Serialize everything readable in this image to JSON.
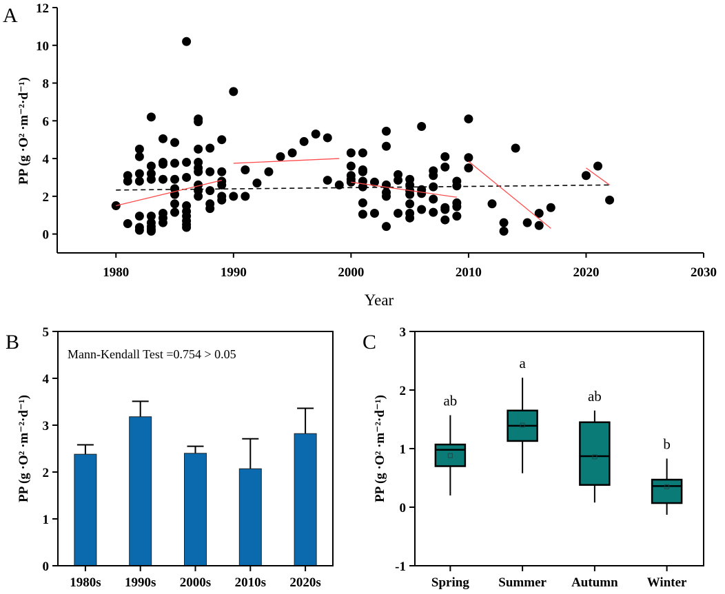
{
  "chart_data": [
    {
      "panel": "A",
      "type": "scatter",
      "xlabel": "Year",
      "ylabel": "PP (g ·O² ·m⁻²·d⁻¹)",
      "xlim": [
        1975,
        2030
      ],
      "ylim": [
        -1,
        12
      ],
      "xticks": [
        1980,
        1990,
        2000,
        2010,
        2020,
        2030
      ],
      "yticks": [
        0,
        2,
        4,
        6,
        8,
        10,
        12
      ],
      "colors": {
        "points": "#000000",
        "overall_trend": "#000000",
        "decade_trend": "#ff4d4d"
      },
      "points": [
        [
          1980,
          1.5
        ],
        [
          1981,
          3.1
        ],
        [
          1981,
          2.8
        ],
        [
          1981,
          0.55
        ],
        [
          1982,
          4.5
        ],
        [
          1982,
          4.1
        ],
        [
          1982,
          3.2
        ],
        [
          1982,
          2.8
        ],
        [
          1982,
          0.95
        ],
        [
          1982,
          0.35
        ],
        [
          1982,
          0.2
        ],
        [
          1983,
          6.2
        ],
        [
          1983,
          3.6
        ],
        [
          1983,
          3.2
        ],
        [
          1983,
          2.9
        ],
        [
          1983,
          0.95
        ],
        [
          1983,
          0.6
        ],
        [
          1983,
          0.4
        ],
        [
          1983,
          0.25
        ],
        [
          1983,
          0.15
        ],
        [
          1984,
          5.05
        ],
        [
          1984,
          3.8
        ],
        [
          1984,
          3.7
        ],
        [
          1984,
          2.9
        ],
        [
          1984,
          1.1
        ],
        [
          1984,
          0.85
        ],
        [
          1984,
          0.6
        ],
        [
          1985,
          4.85
        ],
        [
          1985,
          3.75
        ],
        [
          1985,
          2.9
        ],
        [
          1985,
          2.4
        ],
        [
          1985,
          2.1
        ],
        [
          1985,
          1.6
        ],
        [
          1985,
          1.15
        ],
        [
          1986,
          10.2
        ],
        [
          1986,
          3.8
        ],
        [
          1986,
          3.0
        ],
        [
          1986,
          1.5
        ],
        [
          1986,
          1.2
        ],
        [
          1986,
          0.95
        ],
        [
          1986,
          0.7
        ],
        [
          1986,
          0.5
        ],
        [
          1986,
          0.35
        ],
        [
          1987,
          6.1
        ],
        [
          1987,
          5.95
        ],
        [
          1987,
          4.5
        ],
        [
          1987,
          3.8
        ],
        [
          1987,
          3.5
        ],
        [
          1987,
          3.3
        ],
        [
          1987,
          2.6
        ],
        [
          1987,
          2.3
        ],
        [
          1987,
          2.0
        ],
        [
          1988,
          4.55
        ],
        [
          1988,
          3.3
        ],
        [
          1988,
          2.3
        ],
        [
          1988,
          1.6
        ],
        [
          1988,
          1.35
        ],
        [
          1989,
          5.0
        ],
        [
          1989,
          3.3
        ],
        [
          1989,
          2.8
        ],
        [
          1989,
          2.6
        ],
        [
          1989,
          2.0
        ],
        [
          1989,
          1.8
        ],
        [
          1990,
          7.55
        ],
        [
          1990,
          2.0
        ],
        [
          1991,
          3.4
        ],
        [
          1991,
          2.0
        ],
        [
          1992,
          2.7
        ],
        [
          1993,
          3.3
        ],
        [
          1994,
          4.1
        ],
        [
          1995,
          4.3
        ],
        [
          1996,
          4.9
        ],
        [
          1997,
          5.3
        ],
        [
          1998,
          5.1
        ],
        [
          1998,
          2.85
        ],
        [
          1999,
          2.6
        ],
        [
          2000,
          4.3
        ],
        [
          2000,
          3.6
        ],
        [
          2000,
          3.1
        ],
        [
          2000,
          2.9
        ],
        [
          2000,
          2.75
        ],
        [
          2001,
          4.3
        ],
        [
          2001,
          3.4
        ],
        [
          2001,
          3.3
        ],
        [
          2001,
          2.8
        ],
        [
          2001,
          2.5
        ],
        [
          2001,
          1.65
        ],
        [
          2001,
          1.05
        ],
        [
          2002,
          2.75
        ],
        [
          2002,
          1.1
        ],
        [
          2003,
          5.45
        ],
        [
          2003,
          4.65
        ],
        [
          2003,
          2.6
        ],
        [
          2003,
          2.2
        ],
        [
          2003,
          2.0
        ],
        [
          2003,
          0.4
        ],
        [
          2004,
          3.15
        ],
        [
          2004,
          2.85
        ],
        [
          2004,
          1.1
        ],
        [
          2005,
          2.9
        ],
        [
          2005,
          2.6
        ],
        [
          2005,
          2.3
        ],
        [
          2005,
          2.1
        ],
        [
          2005,
          1.6
        ],
        [
          2005,
          1.1
        ],
        [
          2005,
          0.85
        ],
        [
          2006,
          5.7
        ],
        [
          2006,
          2.35
        ],
        [
          2006,
          2.15
        ],
        [
          2006,
          1.3
        ],
        [
          2007,
          3.35
        ],
        [
          2007,
          3.1
        ],
        [
          2007,
          2.5
        ],
        [
          2007,
          1.85
        ],
        [
          2007,
          1.15
        ],
        [
          2008,
          4.1
        ],
        [
          2008,
          3.55
        ],
        [
          2008,
          1.4
        ],
        [
          2008,
          1.3
        ],
        [
          2008,
          0.75
        ],
        [
          2009,
          2.8
        ],
        [
          2009,
          2.55
        ],
        [
          2009,
          1.65
        ],
        [
          2009,
          1.45
        ],
        [
          2009,
          0.95
        ],
        [
          2010,
          6.1
        ],
        [
          2010,
          4.05
        ],
        [
          2010,
          3.5
        ],
        [
          2012,
          1.6
        ],
        [
          2013,
          0.6
        ],
        [
          2013,
          0.15
        ],
        [
          2014,
          4.55
        ],
        [
          2015,
          0.6
        ],
        [
          2016,
          1.1
        ],
        [
          2016,
          0.45
        ],
        [
          2017,
          1.4
        ],
        [
          2020,
          3.1
        ],
        [
          2021,
          3.6
        ],
        [
          2022,
          1.8
        ]
      ],
      "overall_trend": [
        [
          1980,
          2.33
        ],
        [
          2022,
          2.6
        ]
      ],
      "decade_trends": [
        [
          [
            1980,
            1.5
          ],
          [
            1989,
            2.85
          ]
        ],
        [
          [
            1990,
            3.75
          ],
          [
            1999,
            4.0
          ]
        ],
        [
          [
            2000,
            2.75
          ],
          [
            2009,
            1.95
          ]
        ],
        [
          [
            2010,
            3.85
          ],
          [
            2017,
            0.3
          ]
        ],
        [
          [
            2020,
            3.5
          ],
          [
            2022,
            2.6
          ]
        ]
      ]
    },
    {
      "panel": "B",
      "type": "bar",
      "categories": [
        "1980s",
        "1990s",
        "2000s",
        "2010s",
        "2020s"
      ],
      "values": [
        2.38,
        3.18,
        2.4,
        2.07,
        2.82
      ],
      "error_upper": [
        2.58,
        3.51,
        2.55,
        2.71,
        3.36
      ],
      "ylabel": "PP (g ·O² ·m⁻²·d⁻¹)",
      "ylim": [
        0,
        5
      ],
      "yticks": [
        0,
        1,
        2,
        3,
        4,
        5
      ],
      "annotation": "Mann-Kendall Test =0.754 > 0.05",
      "color": "#0a6aad"
    },
    {
      "panel": "C",
      "type": "box",
      "categories": [
        "Spring",
        "Summer",
        "Autumn",
        "Winter"
      ],
      "boxes": [
        {
          "min": 0.2,
          "q1": 0.7,
          "median": 0.98,
          "mean": 0.88,
          "q3": 1.07,
          "max": 1.57,
          "letter": "ab"
        },
        {
          "min": 0.58,
          "q1": 1.13,
          "median": 1.39,
          "mean": 1.4,
          "q3": 1.65,
          "max": 2.21,
          "letter": "a"
        },
        {
          "min": 0.08,
          "q1": 0.38,
          "median": 0.87,
          "mean": 0.86,
          "q3": 1.45,
          "max": 1.65,
          "letter": "ab"
        },
        {
          "min": -0.13,
          "q1": 0.07,
          "median": 0.36,
          "mean": 0.35,
          "q3": 0.47,
          "max": 0.83,
          "letter": "b"
        }
      ],
      "ylabel": "PP (g ·O² ·m⁻²·d⁻¹)",
      "ylim": [
        -1,
        3
      ],
      "yticks": [
        -1,
        0,
        1,
        2,
        3
      ],
      "color": "#0b7b78"
    }
  ]
}
